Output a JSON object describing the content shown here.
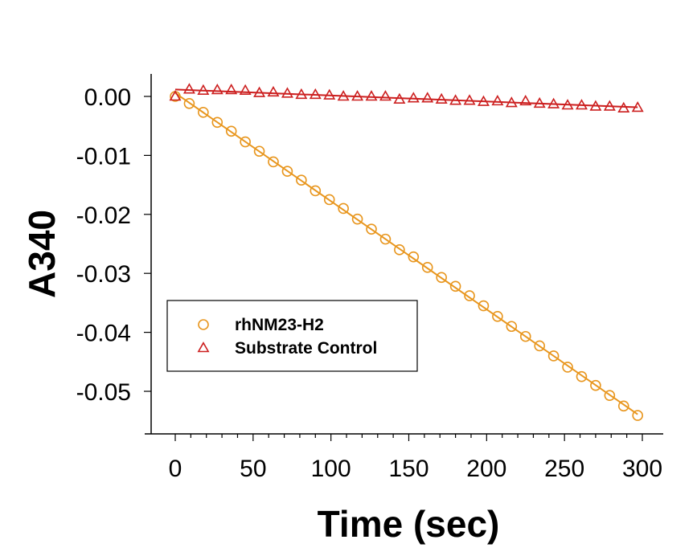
{
  "chart_data": {
    "type": "scatter",
    "title": "",
    "xlabel": "Time (sec)",
    "ylabel": "A340",
    "xlim": [
      0,
      300
    ],
    "ylim": [
      -0.055,
      0.0
    ],
    "x_ticks": [
      0,
      50,
      100,
      150,
      200,
      250,
      300
    ],
    "y_ticks": [
      0.0,
      -0.01,
      -0.02,
      -0.03,
      -0.04,
      -0.05
    ],
    "x_tick_labels": [
      "0",
      "50",
      "100",
      "150",
      "200",
      "250",
      "300"
    ],
    "y_tick_labels": [
      "0.00",
      "-0.01",
      "-0.02",
      "-0.03",
      "-0.04",
      "-0.05"
    ],
    "grid": false,
    "legend_position": "lower-left",
    "series": [
      {
        "name": "rhNM23-H2",
        "marker": "circle",
        "color": "#e8961e",
        "fit_line": true,
        "x": [
          0,
          9,
          18,
          27,
          36,
          45,
          54,
          63,
          72,
          81,
          90,
          99,
          108,
          117,
          126,
          135,
          144,
          153,
          162,
          171,
          180,
          189,
          198,
          207,
          216,
          225,
          234,
          243,
          252,
          261,
          270,
          279,
          288,
          297
        ],
        "y": [
          0.0,
          -0.0012,
          -0.0027,
          -0.0044,
          -0.0059,
          -0.0077,
          -0.0093,
          -0.0111,
          -0.0127,
          -0.0142,
          -0.016,
          -0.0175,
          -0.019,
          -0.0208,
          -0.0225,
          -0.0242,
          -0.026,
          -0.0272,
          -0.029,
          -0.0307,
          -0.0322,
          -0.0338,
          -0.0355,
          -0.0373,
          -0.039,
          -0.0407,
          -0.0423,
          -0.044,
          -0.0459,
          -0.0475,
          -0.049,
          -0.0507,
          -0.0525,
          -0.0541
        ]
      },
      {
        "name": "Substrate Control",
        "marker": "triangle",
        "color": "#cc1f1f",
        "fit_line": true,
        "x": [
          0,
          9,
          18,
          27,
          36,
          45,
          54,
          63,
          72,
          81,
          90,
          99,
          108,
          117,
          126,
          135,
          144,
          153,
          162,
          171,
          180,
          189,
          198,
          207,
          216,
          225,
          234,
          243,
          252,
          261,
          270,
          279,
          288,
          297
        ],
        "y": [
          0.0,
          0.0012,
          0.001,
          0.0011,
          0.0011,
          0.001,
          0.0006,
          0.0007,
          0.0005,
          0.0003,
          0.0003,
          0.0002,
          0.0,
          0.0,
          0.0,
          0.0,
          -0.0005,
          -0.0003,
          -0.0003,
          -0.0005,
          -0.0007,
          -0.0007,
          -0.0009,
          -0.0008,
          -0.0011,
          -0.0008,
          -0.0012,
          -0.0013,
          -0.0015,
          -0.0015,
          -0.0017,
          -0.0017,
          -0.002,
          -0.0019
        ]
      }
    ]
  }
}
